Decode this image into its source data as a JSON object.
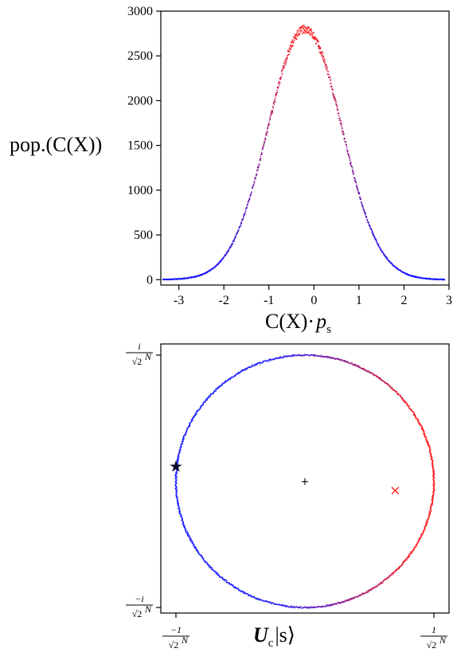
{
  "chart_data": [
    {
      "type": "scatter",
      "ylabel": "pop.(C(X))",
      "xlabel_main": "C(X)·",
      "xlabel_var": "p",
      "xlabel_sub": "s",
      "xlim": [
        -3.4,
        3.0
      ],
      "ylim": [
        -60,
        3000
      ],
      "x_ticks": [
        -3,
        -2,
        -1,
        0,
        1,
        2,
        3
      ],
      "y_ticks": [
        0,
        500,
        1000,
        1500,
        2000,
        2500,
        3000
      ],
      "distribution": {
        "shape": "gaussian",
        "mean": -0.2,
        "std": 0.82,
        "peak": 2800,
        "x_range": [
          -3.35,
          2.9
        ]
      },
      "color_low": "#1a1aff",
      "color_high": "#ff1a1a"
    },
    {
      "type": "scatter",
      "xlabel_var": "U",
      "xlabel_sub": "c",
      "xlabel_ket": "|s⟩",
      "x_tick_labels": [
        {
          "num": "−1",
          "den": "√2",
          "exp": "N"
        },
        {
          "num": "1",
          "den": "√2",
          "exp": "N"
        }
      ],
      "y_tick_labels": [
        {
          "num": "i",
          "den": "√2",
          "exp": "N"
        },
        {
          "num": "−i",
          "den": "√2",
          "exp": "N"
        }
      ],
      "xlim": [
        -1,
        1
      ],
      "ylim": [
        -1,
        1
      ],
      "circle": {
        "center": [
          0,
          0
        ],
        "radius": 1
      },
      "markers": [
        {
          "symbol": "★",
          "name": "star",
          "x": -1.0,
          "y": 0.12,
          "color": "#0d0d2a"
        },
        {
          "symbol": "+",
          "name": "center",
          "x": 0,
          "y": 0,
          "color": "#000000"
        },
        {
          "symbol": "×",
          "name": "x-mark",
          "x": 0.7,
          "y": -0.07,
          "color": "#ff2020"
        }
      ],
      "color_left": "#1a1aff",
      "color_right": "#ff1a1a"
    }
  ]
}
